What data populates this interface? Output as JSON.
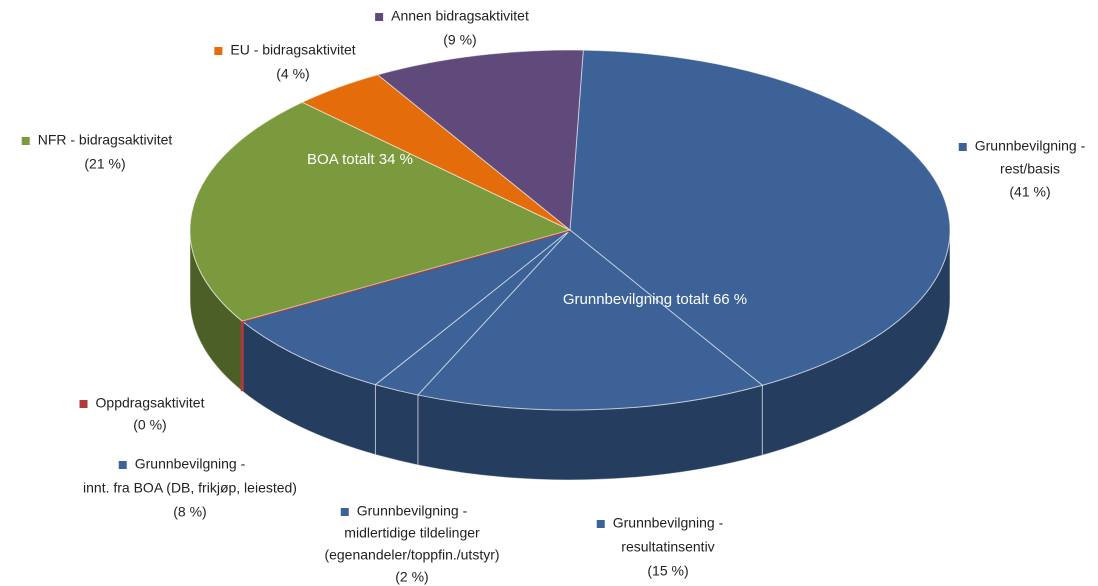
{
  "chart_data": {
    "type": "pie3d",
    "categories": [
      [
        "Grunnbevilgning -",
        "rest/basis"
      ],
      [
        "Grunnbevilgning -",
        "resultatinsentiv"
      ],
      [
        "Grunnbevilgning -",
        "midlertidige tildelinger",
        "(egenandeler/toppfin./utstyr)"
      ],
      [
        "Grunnbevilgning -",
        "innt. fra BOA (DB, frikjøp, leiested)"
      ],
      [
        "Oppdragsaktivitet"
      ],
      [
        "NFR - bidragsaktivitet"
      ],
      [
        "EU - bidragsaktivitet"
      ],
      [
        "Annen bidragsaktivitet"
      ]
    ],
    "values": [
      41,
      15,
      2,
      8,
      0,
      21,
      4,
      9
    ],
    "value_labels": [
      "(41 %)",
      "(15 %)",
      "(2 %)",
      "(8 %)",
      "(0 %)",
      "(21 %)",
      "(4 %)",
      "(9 %)"
    ],
    "colors": [
      "#3c6297",
      "#3c6297",
      "#3c6297",
      "#3c6297",
      "#b03a3a",
      "#7a9a3d",
      "#e46c0a",
      "#604a7b"
    ],
    "annotations": [
      "BOA totalt 34 %",
      "Grunnbevilgning totalt 66 %"
    ]
  }
}
